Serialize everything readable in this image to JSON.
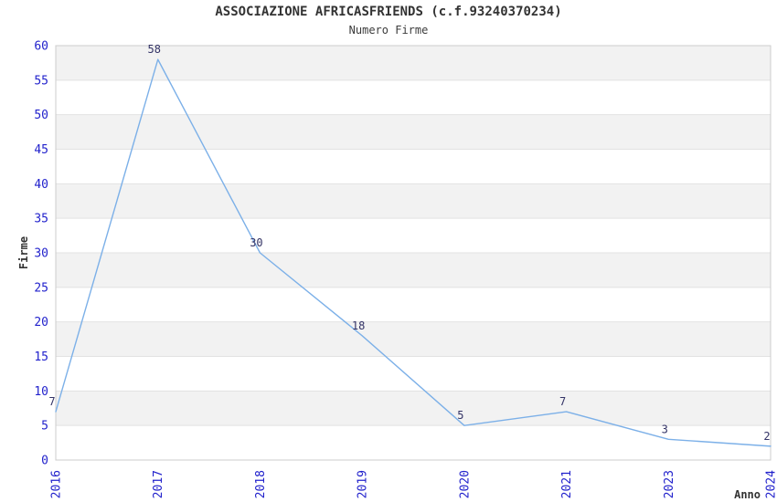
{
  "chart_data": {
    "type": "line",
    "title": "ASSOCIAZIONE AFRICASFRIENDS (c.f.93240370234)",
    "subtitle": "Numero Firme",
    "xlabel": "Anno",
    "ylabel": "Firme",
    "categories": [
      "2016",
      "2017",
      "2018",
      "2019",
      "2020",
      "2021",
      "2023",
      "2024"
    ],
    "values": [
      7,
      58,
      30,
      18,
      5,
      7,
      3,
      2
    ],
    "ylim": [
      0,
      60
    ],
    "ytick_step": 5,
    "yticks": [
      0,
      5,
      10,
      15,
      20,
      25,
      30,
      35,
      40,
      45,
      50,
      55,
      60
    ],
    "grid": "horizontal",
    "banding": "alternating-horizontal-stripes",
    "legend": "none",
    "data_labels_visible": true,
    "colors": {
      "line": "#7cb0e8",
      "tick_label": "#2222cc",
      "data_label": "#333366",
      "band": "#f2f2f2",
      "grid_line": "#e2e2e2",
      "plot_border": "#cccccc",
      "text": "#333333"
    }
  }
}
